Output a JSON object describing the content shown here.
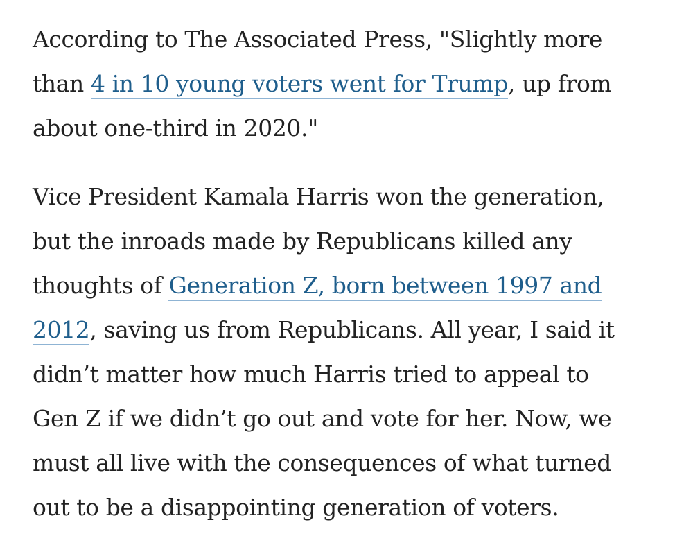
{
  "article": {
    "paragraph1": {
      "line1": "According to The Associated Press, \"Slightly more",
      "line2_pre": "than ",
      "link_text": "4 in 10 young voters went for Trump",
      "line2_post": ", up from",
      "line3": "about one-third in 2020.\""
    },
    "paragraph2": {
      "line1": "Vice President Kamala Harris won the generation,",
      "line2": "but the inroads made by Republicans killed any",
      "line3_pre": "thoughts of ",
      "link_part1": "Generation Z, born between 1997 and",
      "link_part2": "2012",
      "line4_post": ", saving us from Republicans. All year, I said it",
      "line5": "didn’t matter how much Harris tried to appeal to",
      "line6": "Gen Z if we didn’t go out and vote for her. Now, we",
      "line7": "must all live with the consequences of what turned",
      "line8": "out to be a disappointing generation of voters."
    }
  },
  "colors": {
    "text": "#222222",
    "link": "#1f5e8c",
    "link_underline": "#8fb4d4",
    "background": "#ffffff"
  }
}
